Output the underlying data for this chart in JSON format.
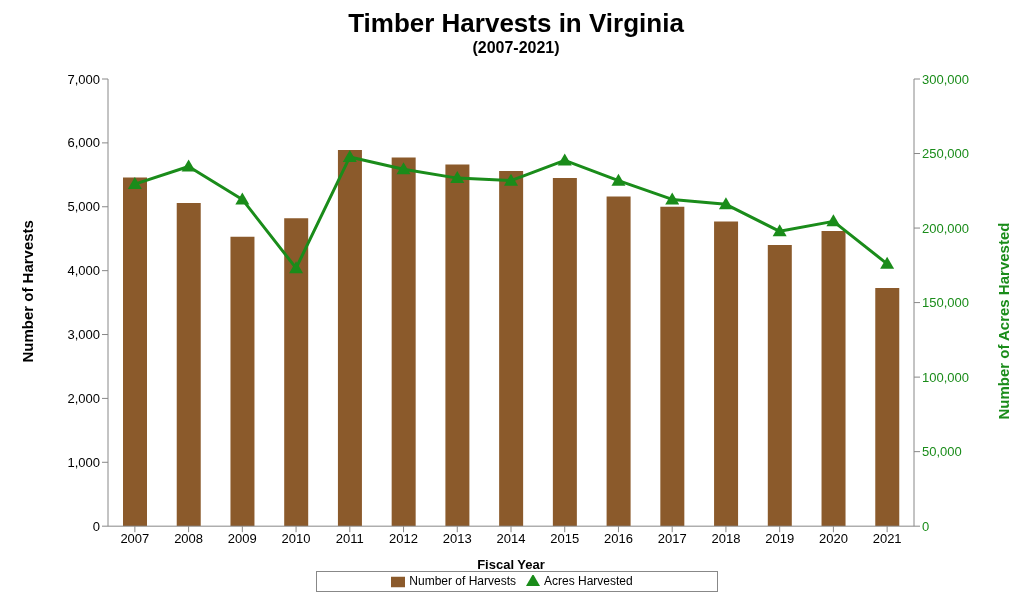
{
  "chart_data": {
    "type": "bar",
    "title": "Timber Harvests in Virginia",
    "subtitle": "(2007-2021)",
    "xlabel": "Fiscal Year",
    "ylabel": "Number of Harvests",
    "y2label": "Number of Acres Harvested",
    "categories": [
      "2007",
      "2008",
      "2009",
      "2010",
      "2011",
      "2012",
      "2013",
      "2014",
      "2015",
      "2016",
      "2017",
      "2018",
      "2019",
      "2020",
      "2021"
    ],
    "series": [
      {
        "name": "Number of Harvests",
        "color": "#8b5a2b",
        "values": [
          5460,
          5060,
          4530,
          4820,
          5890,
          5770,
          5660,
          5560,
          5450,
          5160,
          5000,
          4770,
          4400,
          4620,
          3730
        ]
      },
      {
        "name": "Acres Harvested",
        "type": "line",
        "axis": "y2",
        "color": "#1a8c1a",
        "marker": "triangle",
        "values": [
          229500,
          241300,
          219200,
          173100,
          247700,
          239400,
          233500,
          231800,
          245400,
          231800,
          219200,
          215900,
          197800,
          204500,
          176000
        ]
      }
    ],
    "ylim": [
      0,
      7000
    ],
    "yticks": [
      {
        "value": 0,
        "label": "0"
      },
      {
        "value": 1000,
        "label": "1,000"
      },
      {
        "value": 2000,
        "label": "2,000"
      },
      {
        "value": 3000,
        "label": "3,000"
      },
      {
        "value": 4000,
        "label": "4,000"
      },
      {
        "value": 5000,
        "label": "5,000"
      },
      {
        "value": 6000,
        "label": "6,000"
      },
      {
        "value": 7000,
        "label": "7,000"
      }
    ],
    "y2lim": [
      0,
      300000
    ],
    "y2ticks": [
      {
        "value": 0,
        "label": "0"
      },
      {
        "value": 50000,
        "label": "50,000"
      },
      {
        "value": 100000,
        "label": "100,000"
      },
      {
        "value": 150000,
        "label": "150,000"
      },
      {
        "value": 200000,
        "label": "200,000"
      },
      {
        "value": 250000,
        "label": "250,000"
      },
      {
        "value": 300000,
        "label": "300,000"
      }
    ],
    "grid": false,
    "legend": "bottom"
  }
}
